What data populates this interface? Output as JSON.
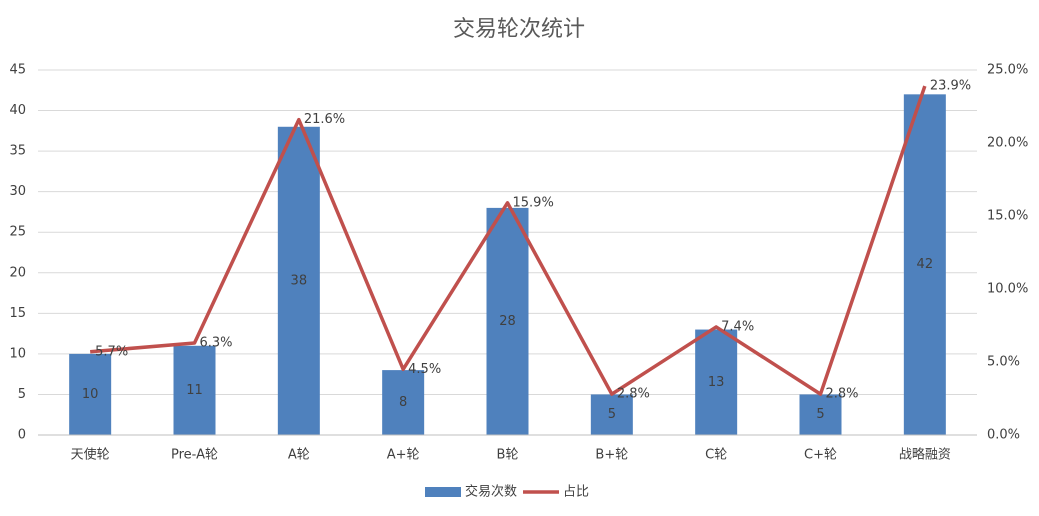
{
  "chart_data": {
    "type": "combo",
    "title": "交易轮次统计",
    "categories": [
      "天使轮",
      "Pre-A轮",
      "A轮",
      "A+轮",
      "B轮",
      "B+轮",
      "C轮",
      "C+轮",
      "战略融资"
    ],
    "series": [
      {
        "name": "交易次数",
        "type": "bar",
        "color": "#4f81bd",
        "values": [
          10,
          11,
          38,
          8,
          28,
          5,
          13,
          5,
          42
        ]
      },
      {
        "name": "占比",
        "type": "line",
        "axis": "y2",
        "color": "#c0504d",
        "values": [
          5.7,
          6.3,
          21.6,
          4.5,
          15.9,
          2.8,
          7.4,
          2.8,
          23.9
        ],
        "value_labels": [
          "5.7%",
          "6.3%",
          "21.6%",
          "4.5%",
          "15.9%",
          "2.8%",
          "7.4%",
          "2.8%",
          "23.9%"
        ]
      }
    ],
    "ylim": [
      0,
      45
    ],
    "yticks": [
      0,
      5,
      10,
      15,
      20,
      25,
      30,
      35,
      40,
      45
    ],
    "y2lim": [
      0,
      25
    ],
    "y2ticks": [
      {
        "value": 0,
        "label": "0.0%"
      },
      {
        "value": 5,
        "label": "5.0%"
      },
      {
        "value": 10,
        "label": "10.0%"
      },
      {
        "value": 15,
        "label": "15.0%"
      },
      {
        "value": 20,
        "label": "20.0%"
      },
      {
        "value": 25,
        "label": "25.0%"
      }
    ],
    "grid": true,
    "legend": "bottom"
  }
}
